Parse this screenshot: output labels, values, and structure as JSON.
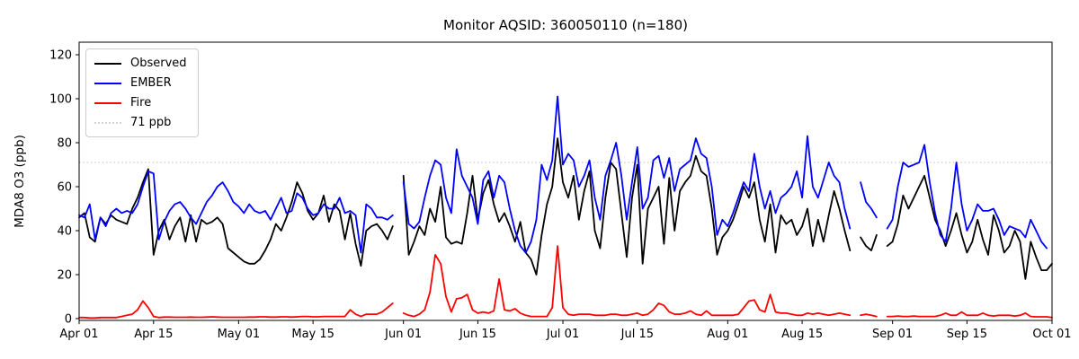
{
  "figure": {
    "title": "Monitor AQSID: 360050110 (n=180)",
    "background": "#ffffff"
  },
  "axes": {
    "ylabel": "MDA8 O3 (ppb)",
    "y_ticks": [
      0,
      20,
      40,
      60,
      80,
      100,
      120
    ],
    "x_tick_labels": [
      "Apr 01",
      "Apr 15",
      "May 01",
      "May 15",
      "Jun 01",
      "Jun 15",
      "Jul 01",
      "Jul 15",
      "Aug 01",
      "Aug 15",
      "Sep 01",
      "Sep 15",
      "Oct 01"
    ]
  },
  "legend": {
    "items": [
      {
        "label": "Observed",
        "color": "#000000",
        "style": "solid"
      },
      {
        "label": "EMBER",
        "color": "#0000ff",
        "style": "solid"
      },
      {
        "label": "Fire",
        "color": "#ff0000",
        "style": "solid"
      },
      {
        "label": "71 ppb",
        "color": "#d3d3d3",
        "style": "dotted"
      }
    ]
  },
  "chart_data": {
    "type": "line",
    "title": "Monitor AQSID: 360050110 (n=180)",
    "n_points": 180,
    "xlabel": "",
    "ylabel": "MDA8 O3 (ppb)",
    "ylim": [
      0,
      125
    ],
    "grid": false,
    "legend_position": "upper left",
    "x_unit": "days since Apr 01",
    "x_range_days": 183,
    "x_tick_days": [
      0,
      14,
      30,
      44,
      61,
      75,
      91,
      105,
      122,
      136,
      153,
      167,
      183
    ],
    "x_tick_labels": [
      "Apr 01",
      "Apr 15",
      "May 01",
      "May 15",
      "Jun 01",
      "Jun 15",
      "Jul 01",
      "Jul 15",
      "Aug 01",
      "Aug 15",
      "Sep 01",
      "Sep 15",
      "Oct 01"
    ],
    "threshold": {
      "label": "71 ppb",
      "value": 71,
      "color": "#d3d3d3",
      "style": "dotted"
    },
    "series": [
      {
        "name": "Observed",
        "color": "#000000",
        "values": [
          46,
          48,
          37,
          35,
          46,
          43,
          47,
          45,
          44,
          43,
          50,
          55,
          62,
          68,
          29,
          40,
          45,
          36,
          42,
          46,
          35,
          47,
          35,
          45,
          43,
          44,
          46,
          43,
          32,
          30,
          28,
          26,
          25,
          25,
          27,
          31,
          36,
          43,
          40,
          46,
          53,
          62,
          57,
          49,
          45,
          48,
          56,
          44,
          52,
          49,
          36,
          48,
          34,
          24,
          40,
          42,
          43,
          40,
          36,
          42,
          null,
          65,
          29,
          35,
          42,
          38,
          50,
          44,
          60,
          37,
          34,
          35,
          34,
          48,
          65,
          45,
          57,
          63,
          52,
          44,
          48,
          42,
          35,
          44,
          30,
          27,
          20,
          38,
          52,
          60,
          82,
          62,
          55,
          65,
          45,
          58,
          67,
          40,
          32,
          55,
          71,
          68,
          48,
          28,
          55,
          70,
          25,
          50,
          55,
          60,
          34,
          64,
          40,
          58,
          62,
          65,
          74,
          67,
          65,
          50,
          29,
          37,
          40,
          45,
          52,
          60,
          55,
          62,
          45,
          35,
          52,
          30,
          47,
          43,
          45,
          38,
          42,
          50,
          33,
          45,
          35,
          47,
          58,
          50,
          40,
          31,
          null,
          37,
          33,
          31,
          38,
          null,
          33,
          35,
          43,
          56,
          50,
          55,
          60,
          65,
          55,
          45,
          40,
          33,
          40,
          48,
          38,
          30,
          35,
          45,
          36,
          29,
          47,
          40,
          30,
          33,
          40,
          35,
          18,
          35,
          28,
          22,
          22,
          25
        ]
      },
      {
        "name": "EMBER",
        "color": "#0000ff",
        "values": [
          47,
          46,
          52,
          36,
          46,
          42,
          48,
          50,
          48,
          49,
          48,
          52,
          60,
          67,
          66,
          36,
          44,
          49,
          52,
          53,
          50,
          46,
          43,
          48,
          53,
          56,
          60,
          62,
          58,
          53,
          51,
          48,
          52,
          49,
          48,
          49,
          45,
          50,
          55,
          48,
          49,
          57,
          55,
          50,
          47,
          48,
          52,
          50,
          50,
          55,
          48,
          49,
          47,
          30,
          52,
          50,
          46,
          46,
          45,
          47,
          null,
          62,
          43,
          41,
          44,
          55,
          65,
          72,
          70,
          55,
          48,
          77,
          65,
          60,
          55,
          43,
          63,
          67,
          55,
          65,
          62,
          50,
          40,
          33,
          30,
          35,
          45,
          70,
          63,
          72,
          101,
          70,
          75,
          72,
          60,
          65,
          72,
          55,
          45,
          65,
          72,
          80,
          65,
          45,
          62,
          78,
          50,
          55,
          72,
          74,
          64,
          73,
          58,
          68,
          70,
          72,
          82,
          75,
          73,
          60,
          38,
          45,
          42,
          48,
          55,
          62,
          58,
          75,
          60,
          50,
          58,
          48,
          55,
          57,
          60,
          67,
          55,
          83,
          60,
          55,
          63,
          71,
          65,
          62,
          50,
          41,
          null,
          62,
          53,
          50,
          46,
          null,
          41,
          45,
          60,
          71,
          69,
          70,
          71,
          79,
          62,
          48,
          38,
          35,
          50,
          71,
          52,
          40,
          45,
          52,
          49,
          49,
          50,
          45,
          38,
          42,
          41,
          40,
          37,
          45,
          40,
          35,
          32,
          null
        ]
      },
      {
        "name": "Fire",
        "color": "#ff0000",
        "values": [
          0.5,
          0.5,
          0.3,
          0.3,
          0.5,
          0.5,
          0.5,
          0.5,
          1,
          1.5,
          2,
          4,
          8,
          5,
          1,
          0.5,
          0.7,
          0.7,
          0.6,
          0.6,
          0.6,
          0.7,
          0.6,
          0.6,
          0.7,
          0.8,
          0.7,
          0.6,
          0.6,
          0.6,
          0.6,
          0.6,
          0.7,
          0.7,
          0.8,
          0.8,
          0.7,
          0.7,
          0.8,
          0.8,
          0.7,
          0.8,
          1,
          1,
          0.8,
          0.8,
          1,
          1,
          1,
          1,
          1,
          4,
          2,
          1,
          2,
          2,
          2,
          3,
          5,
          7,
          null,
          2.5,
          1.5,
          1,
          2,
          4,
          12,
          29,
          25,
          10,
          3,
          9,
          9.5,
          11,
          4,
          2.5,
          3,
          2.5,
          3.5,
          18,
          4,
          3.5,
          4.5,
          2.5,
          1.5,
          1,
          1,
          1,
          1,
          5,
          33,
          5,
          2,
          1.5,
          2,
          2,
          2,
          1.5,
          1.5,
          1.5,
          2,
          2,
          1.5,
          1.5,
          2,
          2.5,
          1.5,
          2,
          4,
          7,
          6,
          3,
          2,
          2,
          2.5,
          3.5,
          2,
          1.5,
          3.5,
          1.5,
          1.5,
          1.5,
          1.5,
          1.5,
          2,
          5,
          8,
          8.5,
          4,
          3,
          11,
          3,
          2.5,
          2.5,
          2,
          1.5,
          1.5,
          2.5,
          2,
          2.5,
          2,
          1.5,
          2,
          2.5,
          2,
          1.5,
          null,
          1.5,
          2,
          1.5,
          1,
          null,
          1,
          1,
          1.2,
          1,
          1,
          1.2,
          1,
          1,
          1,
          1,
          1.5,
          2.5,
          1.5,
          1.5,
          3,
          1.5,
          1.5,
          1.5,
          2.5,
          1.5,
          1.2,
          1.5,
          1.5,
          1.5,
          1.2,
          1.5,
          2.5,
          1,
          0.8,
          0.8,
          0.8,
          0.5
        ]
      }
    ]
  }
}
